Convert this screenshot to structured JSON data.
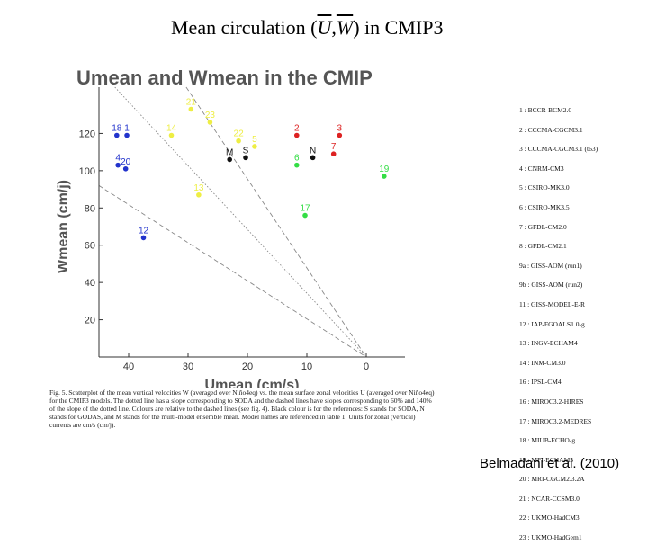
{
  "slide_title": {
    "prefix": "Mean circulation (",
    "u": "U",
    "comma": ",",
    "w": "W",
    "suffix": ") in CMIP3"
  },
  "panel_title": "Umean and Wmean in the CMIP",
  "caption": "Fig. 5. Scatterplot of the mean vertical velocities W (averaged over Niño4eq) vs. the mean surface zonal velocities U (averaged over Niño4eq) for the CMIP3 models. The dotted line has a slope corresponding to SODA and the dashed lines have slopes corresponding to 60% and 140% of the slope of the dotted line. Colours are relative to the dashed lines (see fig. 4). Black colour is for the references: S stands for SODA, N stands for GODAS, and M stands for the multi-model ensemble mean. Model names are referenced in table 1. Units for zonal (vertical) currents are cm/s (cm/j).",
  "credit": "Belmadani et al. (2010)",
  "legend": [
    "1 : BCCR-BCM2.0",
    "2 : CCCMA-CGCM3.1",
    "3 : CCCMA-CGCM3.1 (t63)",
    "4 : CNRM-CM3",
    "5 : CSIRO-MK3.0",
    "6 : CSIRO-MK3.5",
    "7 : GFDL-CM2.0",
    "8 : GFDL-CM2.1",
    "9a : GISS-AOM (run1)",
    "9b : GISS-AOM (run2)",
    "11 : GISS-MODEL-E-R",
    "12 : IAP-FGOALS1.0-g",
    "13 : INGV-ECHAM4",
    "14 : INM-CM3.0",
    "16 : IPSL-CM4",
    "16 : MIROC3.2-HIRES",
    "17 : MIROC3.2-MEDRES",
    "18 : MIUB-ECHO-g",
    "19 : MPI-ECHAM5",
    "20 : MRI-CGCM2.3.2A",
    "21 : NCAR-CCSM3.0",
    "22 : UKMO-HadCM3",
    "23 : UKMO-HadGem1"
  ],
  "chart_data": {
    "type": "scatter",
    "title": "Umean and Wmean in the CMIP",
    "xlabel": "Umean (cm/s)",
    "ylabel": "Wmean (cm/j)",
    "xlim": [
      45,
      -5
    ],
    "ylim": [
      0,
      140
    ],
    "xticks": [
      40,
      30,
      20,
      10,
      0
    ],
    "yticks": [
      0,
      20,
      40,
      60,
      80,
      100,
      120
    ],
    "xtick_labels": [
      "40",
      "30",
      "20",
      "10",
      "0"
    ],
    "ytick_labels": [
      "0",
      "20",
      "40",
      "60",
      "80",
      "100",
      "120"
    ],
    "grid": false,
    "colors": {
      "blue": "#2233cc",
      "yellow": "#eeee44",
      "red": "#dd2222",
      "green": "#33dd44",
      "black": "#111111"
    },
    "points": [
      {
        "label": "1",
        "x": 40.3,
        "y": 119,
        "color": "blue"
      },
      {
        "label": "18",
        "x": 42.0,
        "y": 119,
        "color": "blue"
      },
      {
        "label": "4",
        "x": 41.8,
        "y": 103,
        "color": "blue"
      },
      {
        "label": "20",
        "x": 40.5,
        "y": 101,
        "color": "blue"
      },
      {
        "label": "12",
        "x": 37.5,
        "y": 64,
        "color": "blue"
      },
      {
        "label": "21",
        "x": 29.5,
        "y": 133,
        "color": "yellow"
      },
      {
        "label": "23",
        "x": 26.3,
        "y": 126,
        "color": "yellow"
      },
      {
        "label": "14",
        "x": 32.8,
        "y": 119,
        "color": "yellow"
      },
      {
        "label": "22",
        "x": 21.5,
        "y": 116,
        "color": "yellow"
      },
      {
        "label": "5",
        "x": 18.8,
        "y": 113,
        "color": "yellow"
      },
      {
        "label": "13",
        "x": 28.2,
        "y": 87,
        "color": "yellow"
      },
      {
        "label": "2",
        "x": 11.7,
        "y": 119,
        "color": "red"
      },
      {
        "label": "3",
        "x": 4.5,
        "y": 119,
        "color": "red"
      },
      {
        "label": "7",
        "x": 5.5,
        "y": 109,
        "color": "red"
      },
      {
        "label": "6",
        "x": 11.7,
        "y": 103,
        "color": "green"
      },
      {
        "label": "19",
        "x": -3.0,
        "y": 97,
        "color": "green"
      },
      {
        "label": "17",
        "x": 10.3,
        "y": 76,
        "color": "green"
      },
      {
        "label": "M",
        "x": 23.0,
        "y": 106,
        "color": "black"
      },
      {
        "label": "S",
        "x": 20.3,
        "y": 107,
        "color": "black"
      },
      {
        "label": "N",
        "x": 9.0,
        "y": 107,
        "color": "black"
      }
    ],
    "lines": [
      {
        "name": "dotted",
        "style": "dotted",
        "from": {
          "x": 45,
          "y": 154
        },
        "to": {
          "x": 0,
          "y": 0
        }
      },
      {
        "name": "dashed-60",
        "style": "dashed",
        "from": {
          "x": 45,
          "y": 92
        },
        "to": {
          "x": 0,
          "y": 0
        }
      },
      {
        "name": "dashed-140",
        "style": "dashed",
        "from": {
          "x": 45,
          "y": 215
        },
        "to": {
          "x": 0,
          "y": 0
        }
      }
    ]
  }
}
